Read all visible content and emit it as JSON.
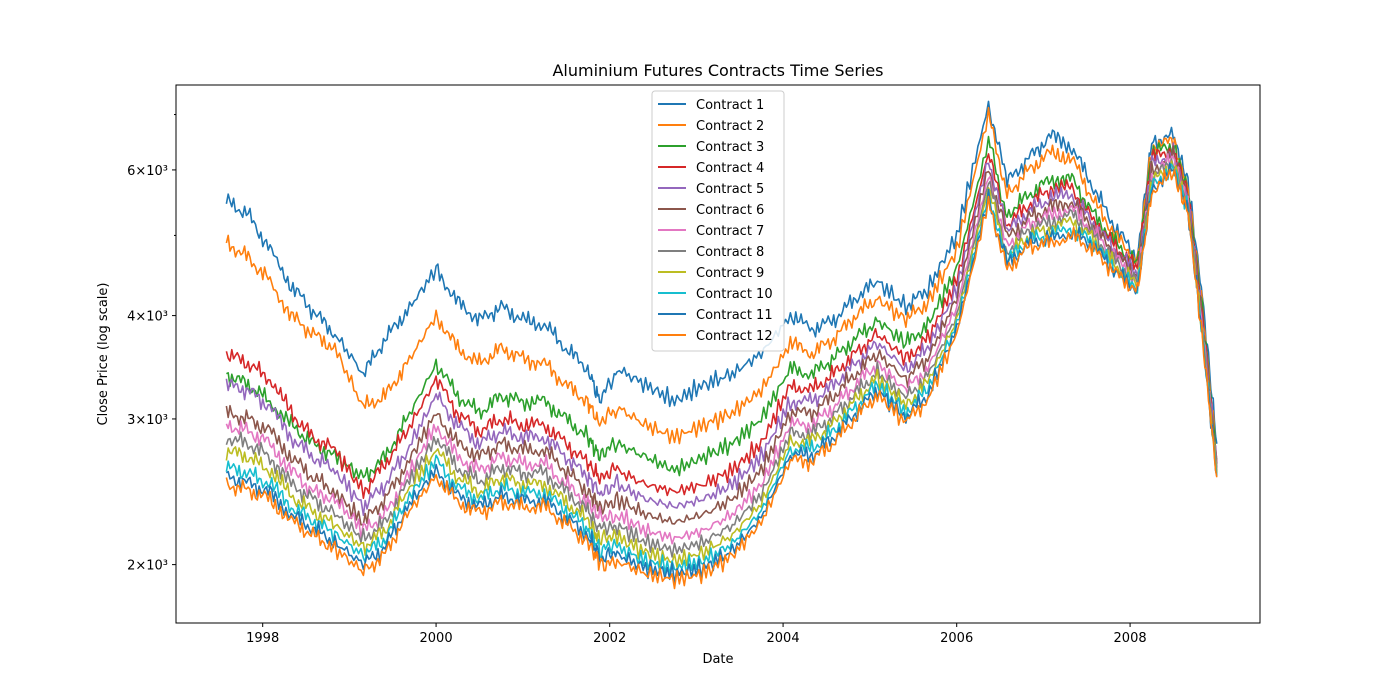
{
  "chart_data": {
    "type": "line",
    "title": "Aluminium Futures Contracts Time Series",
    "xlabel": "Date",
    "ylabel": "Close Price (log scale)",
    "yscale": "log",
    "xlim": [
      "1997-01-01",
      "2009-07-01"
    ],
    "ylim": [
      1700,
      7600
    ],
    "grid": false,
    "legend_position": "upper center",
    "x_ticks": [
      "1998",
      "2000",
      "2002",
      "2004",
      "2006",
      "2008"
    ],
    "y_ticks": [
      {
        "value": 2000,
        "label": "2×10³"
      },
      {
        "value": 3000,
        "label": "3×10³"
      },
      {
        "value": 4000,
        "label": "4×10³"
      },
      {
        "value": 6000,
        "label": "6×10³"
      }
    ],
    "x": [
      "1997-08-01",
      "1997-11-01",
      "1998-02-01",
      "1998-05-01",
      "1998-08-01",
      "1998-11-01",
      "1999-03-01",
      "1999-06-01",
      "1999-09-01",
      "2000-01-01",
      "2000-04-01",
      "2000-07-01",
      "2000-10-01",
      "2001-01-01",
      "2001-04-01",
      "2001-07-01",
      "2001-10-01",
      "2001-11-20",
      "2002-02-01",
      "2002-06-01",
      "2002-10-01",
      "2003-02-01",
      "2003-06-01",
      "2003-10-01",
      "2004-02-01",
      "2004-05-01",
      "2004-08-01",
      "2004-11-01",
      "2005-02-01",
      "2005-06-01",
      "2005-09-01",
      "2006-01-01",
      "2006-05-15",
      "2006-08-01",
      "2006-11-01",
      "2007-02-01",
      "2007-05-01",
      "2007-08-01",
      "2007-11-01",
      "2008-02-01",
      "2008-04-01",
      "2008-07-01",
      "2008-09-01",
      "2008-11-01",
      "2008-12-31"
    ],
    "series": [
      {
        "name": "Contract 1",
        "color": "#1f77b4",
        "values": [
          5500,
          5300,
          4800,
          4350,
          4050,
          3800,
          3400,
          3750,
          4050,
          4550,
          4150,
          3950,
          4100,
          3950,
          3900,
          3650,
          3450,
          3150,
          3450,
          3300,
          3150,
          3300,
          3400,
          3600,
          4000,
          3850,
          3950,
          4200,
          4400,
          4100,
          4300,
          5000,
          7200,
          5800,
          6200,
          6600,
          6400,
          5700,
          5100,
          4700,
          6500,
          6600,
          5800,
          4200,
          2800
        ]
      },
      {
        "name": "Contract 2",
        "color": "#ff7f0e",
        "values": [
          4900,
          4700,
          4400,
          4000,
          3800,
          3650,
          3100,
          3200,
          3500,
          4000,
          3650,
          3500,
          3650,
          3550,
          3500,
          3300,
          3150,
          2950,
          3100,
          2950,
          2850,
          2950,
          3050,
          3250,
          3700,
          3600,
          3750,
          4000,
          4200,
          3950,
          4150,
          4800,
          7000,
          5600,
          6000,
          6300,
          6200,
          5500,
          5000,
          4650,
          6400,
          6500,
          5700,
          4100,
          2700
        ]
      },
      {
        "name": "Contract 3",
        "color": "#2ca02c",
        "values": [
          3400,
          3300,
          3150,
          2950,
          2800,
          2700,
          2550,
          2700,
          3000,
          3500,
          3200,
          3050,
          3200,
          3150,
          3150,
          3000,
          2850,
          2700,
          2800,
          2700,
          2600,
          2700,
          2800,
          3000,
          3450,
          3400,
          3550,
          3750,
          3950,
          3700,
          3900,
          4550,
          6500,
          5300,
          5600,
          5850,
          5850,
          5300,
          4900,
          4600,
          6300,
          6400,
          5650,
          4050,
          2680
        ]
      },
      {
        "name": "Contract 4",
        "color": "#d62728",
        "values": [
          3600,
          3500,
          3350,
          3050,
          2850,
          2750,
          2450,
          2650,
          2900,
          3350,
          3050,
          2900,
          3000,
          2950,
          2950,
          2800,
          2650,
          2550,
          2600,
          2500,
          2450,
          2500,
          2600,
          2800,
          3300,
          3250,
          3400,
          3600,
          3800,
          3550,
          3750,
          4400,
          6300,
          5150,
          5450,
          5700,
          5700,
          5200,
          4850,
          4550,
          6200,
          6350,
          5600,
          4000,
          2650
        ]
      },
      {
        "name": "Contract 5",
        "color": "#9467bd",
        "values": [
          3300,
          3250,
          3100,
          2850,
          2700,
          2600,
          2350,
          2500,
          2750,
          3200,
          2950,
          2800,
          2900,
          2850,
          2850,
          2700,
          2550,
          2450,
          2500,
          2400,
          2350,
          2400,
          2500,
          2700,
          3150,
          3150,
          3300,
          3500,
          3700,
          3450,
          3650,
          4300,
          6200,
          5050,
          5350,
          5550,
          5600,
          5150,
          4800,
          4500,
          6100,
          6300,
          5550,
          3950,
          2650
        ]
      },
      {
        "name": "Contract 6",
        "color": "#8c564b",
        "values": [
          3050,
          3000,
          2900,
          2700,
          2550,
          2450,
          2250,
          2400,
          2650,
          3050,
          2800,
          2700,
          2800,
          2750,
          2750,
          2600,
          2450,
          2350,
          2400,
          2300,
          2250,
          2300,
          2400,
          2600,
          3050,
          3050,
          3200,
          3400,
          3600,
          3350,
          3550,
          4200,
          6050,
          4950,
          5250,
          5400,
          5500,
          5100,
          4750,
          4450,
          6000,
          6250,
          5500,
          3900,
          2620
        ]
      },
      {
        "name": "Contract 7",
        "color": "#e377c2",
        "values": [
          2950,
          2900,
          2800,
          2600,
          2450,
          2400,
          2200,
          2300,
          2550,
          2950,
          2700,
          2600,
          2700,
          2650,
          2650,
          2500,
          2380,
          2280,
          2300,
          2200,
          2150,
          2200,
          2300,
          2500,
          2950,
          2950,
          3100,
          3300,
          3500,
          3250,
          3450,
          4100,
          5900,
          4850,
          5150,
          5300,
          5400,
          5050,
          4700,
          4400,
          5900,
          6200,
          5450,
          3850,
          2600
        ]
      },
      {
        "name": "Contract 8",
        "color": "#7f7f7f",
        "values": [
          2850,
          2800,
          2700,
          2500,
          2400,
          2300,
          2150,
          2250,
          2500,
          2850,
          2620,
          2520,
          2620,
          2580,
          2580,
          2450,
          2320,
          2200,
          2230,
          2130,
          2080,
          2130,
          2230,
          2430,
          2880,
          2880,
          3020,
          3220,
          3420,
          3180,
          3380,
          4000,
          5800,
          4780,
          5080,
          5200,
          5300,
          5000,
          4650,
          4380,
          5850,
          6150,
          5420,
          3820,
          2590
        ]
      },
      {
        "name": "Contract 9",
        "color": "#bcbd22",
        "values": [
          2750,
          2700,
          2600,
          2420,
          2320,
          2230,
          2100,
          2200,
          2450,
          2750,
          2550,
          2450,
          2550,
          2500,
          2500,
          2380,
          2260,
          2140,
          2160,
          2070,
          2020,
          2070,
          2170,
          2370,
          2820,
          2820,
          2960,
          3160,
          3360,
          3120,
          3320,
          3950,
          5700,
          4700,
          5000,
          5100,
          5200,
          4950,
          4600,
          4350,
          5800,
          6100,
          5400,
          3800,
          2580
        ]
      },
      {
        "name": "Contract 10",
        "color": "#17becf",
        "values": [
          2620,
          2580,
          2500,
          2350,
          2260,
          2180,
          2050,
          2150,
          2400,
          2670,
          2480,
          2400,
          2480,
          2440,
          2440,
          2330,
          2210,
          2090,
          2100,
          2020,
          1980,
          2020,
          2120,
          2320,
          2760,
          2760,
          2900,
          3100,
          3300,
          3060,
          3260,
          3900,
          5600,
          4650,
          4950,
          5000,
          5100,
          4900,
          4550,
          4320,
          5750,
          6050,
          5370,
          3780,
          2570
        ]
      },
      {
        "name": "Contract 11",
        "color": "#1f77b4",
        "values": [
          2550,
          2510,
          2440,
          2300,
          2210,
          2130,
          2000,
          2100,
          2350,
          2600,
          2420,
          2350,
          2420,
          2390,
          2390,
          2280,
          2170,
          2050,
          2060,
          1980,
          1950,
          1980,
          2080,
          2280,
          2710,
          2710,
          2850,
          3050,
          3250,
          3010,
          3210,
          3850,
          5550,
          4600,
          4900,
          4950,
          5050,
          4850,
          4520,
          4300,
          5700,
          6000,
          5350,
          3760,
          2560
        ]
      },
      {
        "name": "Contract 12",
        "color": "#ff7f0e",
        "values": [
          2500,
          2460,
          2400,
          2260,
          2170,
          2090,
          1960,
          2060,
          2300,
          2560,
          2380,
          2310,
          2380,
          2350,
          2350,
          2240,
          2130,
          2010,
          2020,
          1950,
          1920,
          1950,
          2050,
          2250,
          2670,
          2670,
          2810,
          3010,
          3210,
          2970,
          3170,
          3800,
          5500,
          4550,
          4850,
          4900,
          5000,
          4800,
          4500,
          4280,
          5650,
          5950,
          5330,
          3740,
          2550
        ]
      }
    ]
  }
}
